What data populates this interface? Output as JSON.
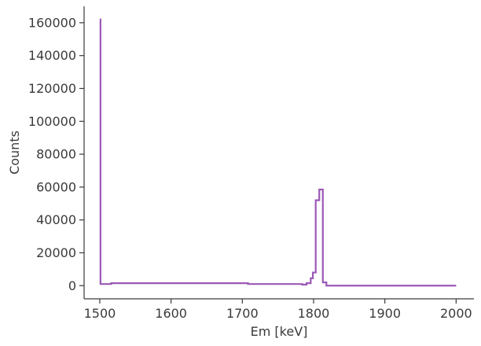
{
  "chart_data": {
    "type": "line",
    "title": "",
    "xlabel": "Em [keV]",
    "ylabel": "Counts",
    "xlim": [
      1478,
      2025
    ],
    "ylim": [
      -8000,
      170000
    ],
    "xticks": [
      1500,
      1600,
      1700,
      1800,
      1900,
      2000
    ],
    "yticks": [
      0,
      20000,
      40000,
      60000,
      80000,
      100000,
      120000,
      140000,
      160000
    ],
    "grid": false,
    "legend": "none",
    "style": "step",
    "color": "#9b59b6",
    "series": [
      {
        "x": [
          1500,
          1501,
          1516,
          1667,
          1708,
          1784,
          1790,
          1796,
          1799,
          1803,
          1808,
          1813,
          1818,
          1823,
          2000
        ],
        "values": [
          162000,
          1000,
          1500,
          1500,
          1000,
          600,
          1500,
          4500,
          8000,
          52000,
          58500,
          2000,
          0,
          0,
          0
        ]
      }
    ]
  }
}
